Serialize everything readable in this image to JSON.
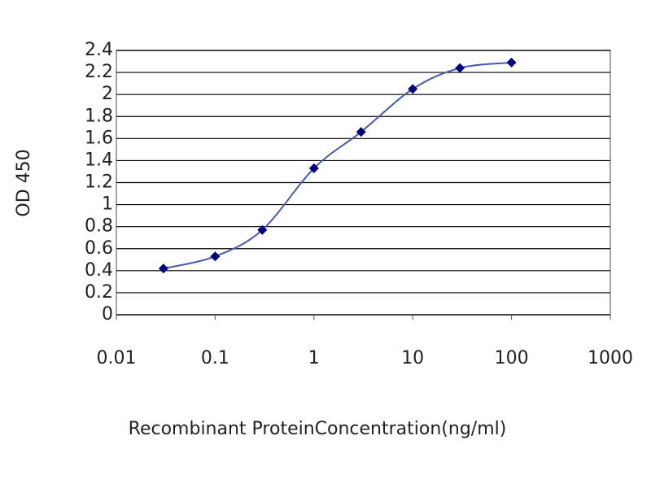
{
  "chart_data": {
    "type": "line",
    "x_label": "Recombinant ProteinConcentration(ng/ml)",
    "y_label": "OD 450",
    "x": [
      0.03,
      0.1,
      0.3,
      1,
      3,
      10,
      30,
      100
    ],
    "series": [
      {
        "color": "#000080",
        "values": [
          0.42,
          0.53,
          0.77,
          1.33,
          1.66,
          2.05,
          2.24,
          2.29
        ]
      }
    ],
    "x_log": true,
    "xlim": [
      0.01,
      1000
    ],
    "xticks": [
      0.01,
      0.1,
      1,
      10,
      100,
      1000
    ],
    "ylim": [
      0,
      2.4
    ],
    "yticks": [
      0,
      0.2,
      0.4,
      0.6,
      0.8,
      1,
      1.2,
      1.4,
      1.6,
      1.8,
      2,
      2.2,
      2.4
    ],
    "grid": true
  }
}
